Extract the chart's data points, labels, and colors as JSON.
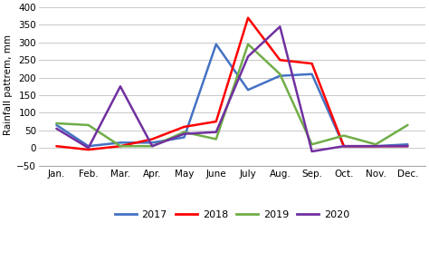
{
  "months": [
    "Jan.",
    "Feb.",
    "Mar.",
    "Apr.",
    "May",
    "June",
    "July",
    "Aug.",
    "Sep.",
    "Oct.",
    "Nov.",
    "Dec."
  ],
  "series": {
    "2017": [
      65,
      5,
      15,
      15,
      30,
      295,
      165,
      205,
      210,
      5,
      5,
      10
    ],
    "2018": [
      5,
      -5,
      5,
      25,
      60,
      75,
      370,
      250,
      240,
      5,
      5,
      5
    ],
    "2019": [
      70,
      65,
      5,
      5,
      45,
      25,
      295,
      210,
      10,
      35,
      10,
      65
    ],
    "2020": [
      55,
      0,
      175,
      5,
      40,
      45,
      260,
      345,
      -10,
      5,
      5,
      5
    ]
  },
  "colors": {
    "2017": "#4472C4",
    "2018": "#FF0000",
    "2019": "#70AD47",
    "2020": "#7030A0"
  },
  "ylabel": "Rainfall pattrem, mm",
  "ylim": [
    -50,
    410
  ],
  "yticks": [
    -50,
    0,
    50,
    100,
    150,
    200,
    250,
    300,
    350,
    400
  ],
  "background_color": "#ffffff",
  "grid_color": "#c8c8c8",
  "linewidth": 1.8
}
